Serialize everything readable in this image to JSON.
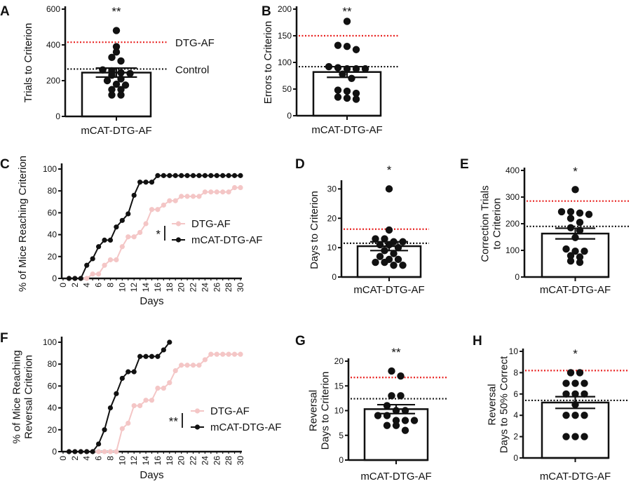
{
  "colors": {
    "dtg_af_line": "#e8201f",
    "control_line": "#111111",
    "dtg_af_series": "#f4c6c6",
    "mcat_series": "#111111",
    "bar_fill": "#ffffff",
    "dot": "#111111"
  },
  "chart_data": [
    {
      "panel": "A",
      "type": "bar",
      "categories": [
        "mCAT-DTG-AF"
      ],
      "ylabel": "Trials to Criterion",
      "ylim": [
        0,
        600
      ],
      "yticks": [
        0,
        200,
        400,
        600
      ],
      "mean": 245,
      "sem": 25,
      "significance": "**",
      "points": [
        480,
        390,
        360,
        330,
        310,
        260,
        255,
        245,
        240,
        230,
        210,
        200,
        180,
        175,
        150,
        150,
        120,
        120
      ],
      "reference_lines": [
        {
          "name": "DTG-AF",
          "value": 415,
          "color": "#e8201f"
        },
        {
          "name": "Control",
          "value": 265,
          "color": "#111111"
        }
      ],
      "reference_labels_shown": true
    },
    {
      "panel": "B",
      "type": "bar",
      "categories": [
        "mCAT-DTG-AF"
      ],
      "ylabel": "Errors to Criterion",
      "ylim": [
        0,
        200
      ],
      "yticks": [
        0,
        50,
        100,
        150,
        200
      ],
      "mean": 82,
      "sem": 10,
      "significance": "**",
      "points": [
        177,
        132,
        130,
        124,
        92,
        90,
        88,
        88,
        88,
        78,
        70,
        48,
        46,
        42,
        35,
        33,
        31
      ],
      "reference_lines": [
        {
          "value": 150,
          "color": "#e8201f"
        },
        {
          "value": 92,
          "color": "#111111"
        }
      ]
    },
    {
      "panel": "C",
      "type": "line",
      "xlabel": "Days",
      "ylabel": "% of Mice Reaching Criterion",
      "xlim": [
        0,
        30
      ],
      "ylim": [
        0,
        100
      ],
      "xticks": [
        0,
        2,
        4,
        6,
        8,
        10,
        12,
        14,
        16,
        18,
        20,
        22,
        24,
        26,
        28,
        30
      ],
      "yticks": [
        0,
        20,
        40,
        60,
        80,
        100
      ],
      "significance": "*",
      "legend": "right",
      "series": [
        {
          "name": "DTG-AF",
          "color": "#f4c6c6",
          "x": [
            1,
            2,
            3,
            4,
            5,
            6,
            7,
            8,
            9,
            10,
            11,
            12,
            13,
            14,
            15,
            16,
            17,
            18,
            19,
            20,
            21,
            22,
            23,
            24,
            25,
            26,
            27,
            28,
            29,
            30
          ],
          "y": [
            0,
            0,
            0,
            0,
            4,
            4,
            12,
            17,
            17,
            29,
            38,
            38,
            42,
            50,
            63,
            63,
            67,
            71,
            71,
            75,
            75,
            75,
            75,
            79,
            79,
            79,
            79,
            79,
            83,
            83
          ]
        },
        {
          "name": "mCAT-DTG-AF",
          "color": "#111111",
          "x": [
            1,
            2,
            3,
            4,
            5,
            6,
            7,
            8,
            9,
            10,
            11,
            12,
            13,
            14,
            15,
            16,
            17,
            18,
            19,
            20,
            21,
            22,
            23,
            24,
            25,
            26,
            27,
            28,
            29,
            30
          ],
          "y": [
            0,
            0,
            0,
            12,
            18,
            29,
            35,
            35,
            47,
            53,
            59,
            76,
            88,
            88,
            88,
            94,
            94,
            94,
            94,
            94,
            94,
            94,
            94,
            94,
            94,
            94,
            94,
            94,
            94,
            94
          ]
        }
      ]
    },
    {
      "panel": "D",
      "type": "bar",
      "categories": [
        "mCAT-DTG-AF"
      ],
      "ylabel": "Days to Criterion",
      "ylim": [
        0,
        32
      ],
      "yticks": [
        0,
        10,
        20,
        30
      ],
      "mean": 10.5,
      "sem": 1.5,
      "significance": "*",
      "points": [
        30,
        16,
        13,
        13,
        12,
        12,
        11,
        11,
        10,
        9,
        8,
        7,
        6,
        6,
        5,
        5,
        4,
        4
      ],
      "reference_lines": [
        {
          "value": 16.3,
          "color": "#e8201f"
        },
        {
          "value": 11.5,
          "color": "#111111"
        }
      ]
    },
    {
      "panel": "E",
      "type": "bar",
      "categories": [
        "mCAT-DTG-AF"
      ],
      "ylabel": [
        "Correction Trials",
        "to Criterion"
      ],
      "ylim": [
        0,
        400
      ],
      "yticks": [
        0,
        100,
        200,
        300,
        400
      ],
      "mean": 163,
      "sem": 20,
      "significance": "*",
      "points": [
        328,
        245,
        245,
        240,
        235,
        220,
        205,
        185,
        175,
        148,
        105,
        97,
        97,
        80,
        75,
        60,
        55
      ],
      "reference_lines": [
        {
          "value": 285,
          "color": "#e8201f"
        },
        {
          "value": 190,
          "color": "#111111"
        }
      ]
    },
    {
      "panel": "F",
      "type": "line",
      "xlabel": "Days",
      "ylabel": [
        "% of Mice Reaching",
        "Reversal Criterion"
      ],
      "xlim": [
        0,
        30
      ],
      "ylim": [
        0,
        100
      ],
      "xticks": [
        0,
        2,
        4,
        6,
        8,
        10,
        12,
        14,
        16,
        18,
        20,
        22,
        24,
        26,
        28,
        30
      ],
      "yticks": [
        0,
        20,
        40,
        60,
        80,
        100
      ],
      "significance": "**",
      "legend": "right",
      "series": [
        {
          "name": "DTG-AF",
          "color": "#f4c6c6",
          "x": [
            1,
            2,
            3,
            4,
            5,
            6,
            7,
            8,
            9,
            10,
            11,
            12,
            13,
            14,
            15,
            16,
            17,
            18,
            19,
            20,
            21,
            22,
            23,
            24,
            25,
            26,
            27,
            28,
            29,
            30
          ],
          "y": [
            0,
            0,
            0,
            0,
            0,
            0,
            0,
            0,
            0,
            21,
            26,
            42,
            42,
            47,
            47,
            58,
            58,
            63,
            74,
            79,
            79,
            79,
            79,
            84,
            89,
            89,
            89,
            89,
            89,
            89
          ]
        },
        {
          "name": "mCAT-DTG-AF",
          "color": "#111111",
          "x": [
            1,
            2,
            3,
            4,
            5,
            6,
            7,
            8,
            9,
            10,
            11,
            12,
            13,
            14,
            15,
            16,
            17,
            18
          ],
          "y": [
            0,
            0,
            0,
            0,
            0,
            7,
            20,
            40,
            53,
            67,
            73,
            73,
            87,
            87,
            87,
            87,
            93,
            100
          ]
        }
      ]
    },
    {
      "panel": "G",
      "type": "bar",
      "categories": [
        "mCAT-DTG-AF"
      ],
      "ylabel": [
        "Reversal",
        "Days to Criterion"
      ],
      "ylim": [
        0,
        20
      ],
      "yticks": [
        0,
        5,
        10,
        15,
        20
      ],
      "mean": 10.3,
      "sem": 0.9,
      "significance": "**",
      "points": [
        18,
        17,
        13,
        13,
        11,
        10,
        10,
        9,
        9,
        8,
        8,
        8,
        7,
        7,
        6
      ],
      "reference_lines": [
        {
          "value": 16.7,
          "color": "#e8201f"
        },
        {
          "value": 12.4,
          "color": "#111111"
        }
      ]
    },
    {
      "panel": "H",
      "type": "bar",
      "categories": [
        "mCAT-DTG-AF"
      ],
      "ylabel": [
        "Reversal",
        "Days to 50% Correct"
      ],
      "ylim": [
        0,
        10
      ],
      "yticks": [
        0,
        2,
        4,
        6,
        8,
        10
      ],
      "mean": 5.2,
      "sem": 0.55,
      "significance": "*",
      "points": [
        8,
        8,
        7,
        7,
        7,
        6,
        6,
        6,
        5,
        4,
        4,
        4,
        2,
        2,
        2
      ],
      "reference_lines": [
        {
          "value": 8.2,
          "color": "#e8201f"
        },
        {
          "value": 5.4,
          "color": "#111111"
        }
      ]
    }
  ]
}
